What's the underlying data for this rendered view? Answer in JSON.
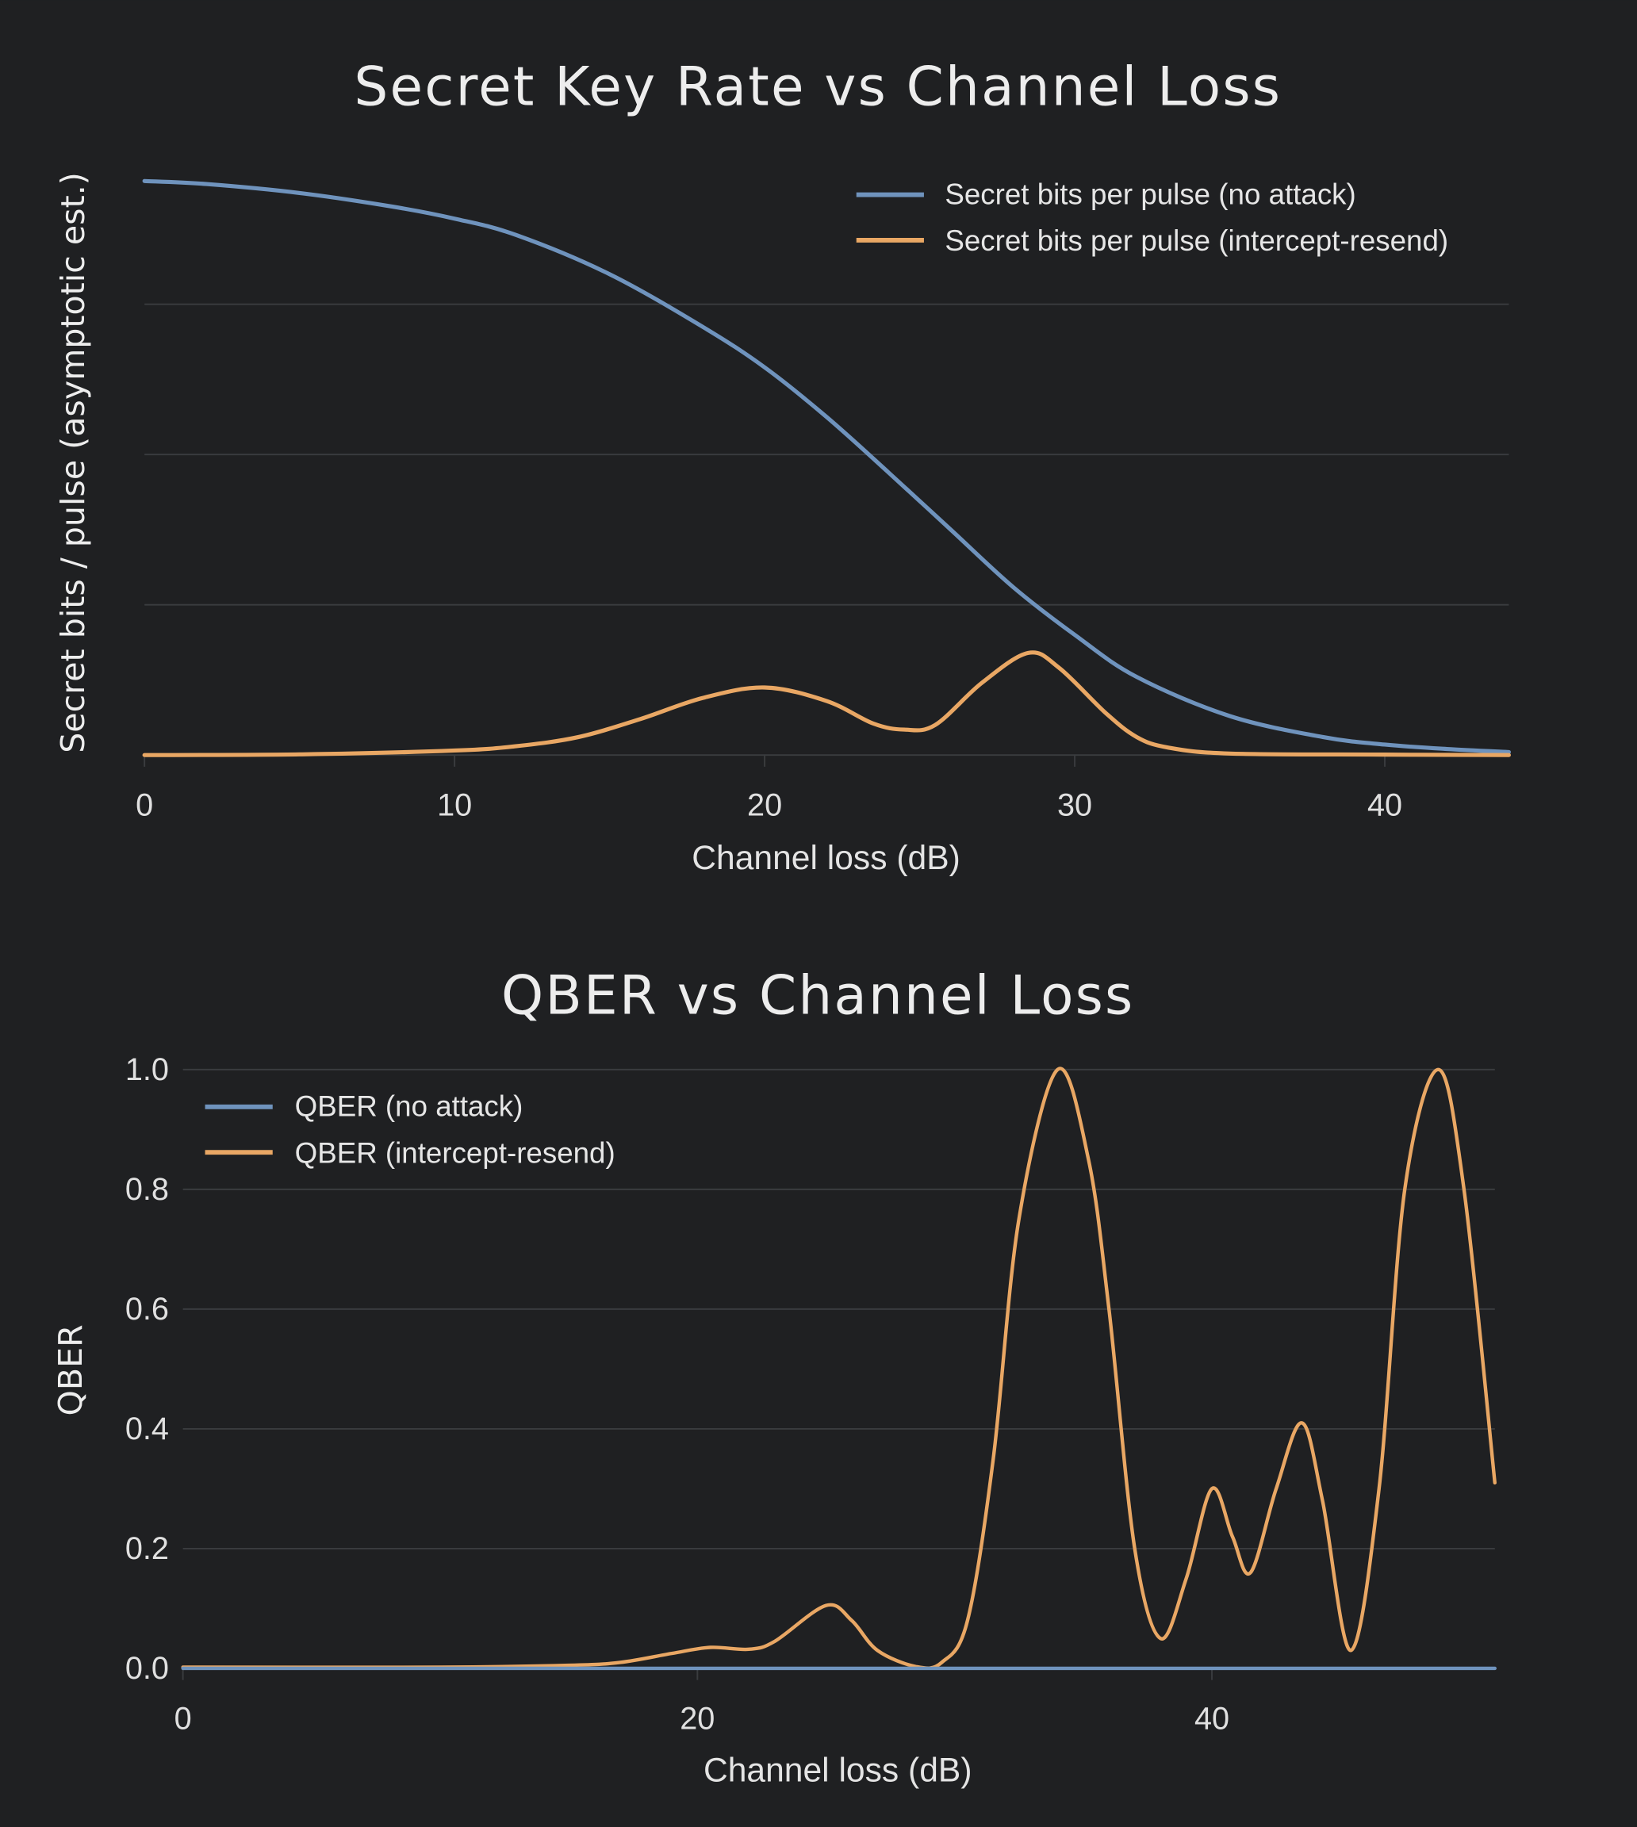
{
  "colors": {
    "background": "#1f2022",
    "no_attack": "#6f93bd",
    "intercept_resend": "#e9a764"
  },
  "chart_data": [
    {
      "type": "line",
      "title": "Secret Key Rate vs Channel Loss",
      "xlabel": "Channel loss (dB)",
      "ylabel": "Secret bits / pulse (asymptotic est.)",
      "xlim": [
        0,
        44
      ],
      "xticks": [
        "0",
        "10",
        "20",
        "30",
        "40"
      ],
      "ylim": [
        0,
        4.5
      ],
      "y_tick_labels_shown": false,
      "grid": true,
      "legend_position": "top-right",
      "series": [
        {
          "name": "Secret bits per pulse (no attack)",
          "color": "#6f93bd",
          "x": [
            0,
            2,
            5,
            8,
            10,
            12,
            15,
            18,
            20,
            22,
            24,
            26,
            28,
            30,
            32,
            35,
            38,
            40,
            42,
            44
          ],
          "y": [
            3.82,
            3.8,
            3.74,
            3.65,
            3.57,
            3.46,
            3.2,
            2.85,
            2.58,
            2.25,
            1.88,
            1.5,
            1.12,
            0.8,
            0.52,
            0.26,
            0.12,
            0.07,
            0.04,
            0.02
          ]
        },
        {
          "name": "Secret bits per pulse (intercept-resend)",
          "color": "#e9a764",
          "x": [
            0,
            5,
            10,
            12,
            14,
            16,
            18,
            20,
            22,
            23.5,
            24.5,
            25.5,
            27,
            28.5,
            29.5,
            31,
            32,
            33,
            35,
            40,
            44
          ],
          "y": [
            0,
            0.005,
            0.03,
            0.06,
            0.12,
            0.24,
            0.38,
            0.45,
            0.36,
            0.21,
            0.17,
            0.2,
            0.48,
            0.68,
            0.58,
            0.28,
            0.12,
            0.05,
            0.01,
            0.003,
            0
          ]
        }
      ]
    },
    {
      "type": "line",
      "title": "QBER vs Channel Loss",
      "xlabel": "Channel loss (dB)",
      "ylabel": "QBER",
      "xlim": [
        0,
        51
      ],
      "xticks": [
        "0",
        "20",
        "40"
      ],
      "ylim": [
        0,
        1.0
      ],
      "yticks": [
        "0.0",
        "0.2",
        "0.4",
        "0.6",
        "0.8",
        "1.0"
      ],
      "grid": true,
      "legend_position": "top-left",
      "series": [
        {
          "name": "QBER (no attack)",
          "color": "#6f93bd",
          "x": [
            0,
            51
          ],
          "y": [
            0,
            0
          ]
        },
        {
          "name": "QBER (intercept-resend)",
          "color": "#e9a764",
          "x": [
            0,
            10,
            15,
            17,
            19,
            20.5,
            22,
            23,
            25,
            26,
            27,
            28.5,
            29.5,
            30.5,
            31.5,
            32.5,
            34,
            35.2,
            36,
            37,
            38,
            39,
            40,
            40.8,
            41.5,
            42.5,
            43.5,
            44.3,
            45.4,
            46.5,
            47.5,
            48.8,
            49.8,
            51
          ],
          "y": [
            0.002,
            0.002,
            0.005,
            0.01,
            0.025,
            0.035,
            0.032,
            0.045,
            0.105,
            0.08,
            0.03,
            0.003,
            0.01,
            0.08,
            0.35,
            0.75,
            1.0,
            0.85,
            0.6,
            0.2,
            0.05,
            0.15,
            0.3,
            0.22,
            0.16,
            0.3,
            0.41,
            0.28,
            0.03,
            0.3,
            0.8,
            1.0,
            0.8,
            0.31
          ]
        }
      ]
    }
  ]
}
